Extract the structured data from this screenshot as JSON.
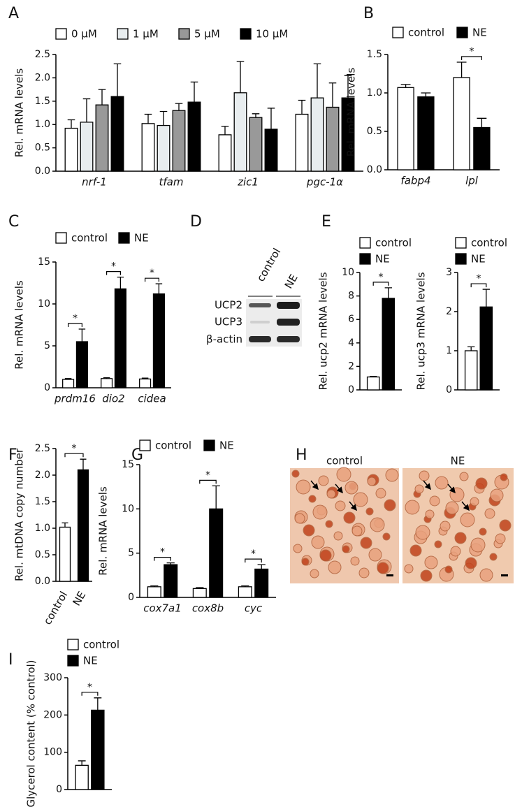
{
  "chart_data": [
    {
      "panel": "A",
      "type": "bar",
      "ylabel": "Rel. mRNA levels",
      "categories": [
        "nrf-1",
        "tfam",
        "zic1",
        "pgc-1α"
      ],
      "series": [
        {
          "name": "0 μM",
          "color": "#ffffff",
          "values": [
            0.92,
            1.02,
            0.78,
            1.22
          ],
          "errors": [
            0.18,
            0.2,
            0.18,
            0.3
          ]
        },
        {
          "name": "1 μM",
          "color": "#e8edef",
          "values": [
            1.05,
            0.98,
            1.68,
            1.57
          ],
          "errors": [
            0.5,
            0.3,
            0.67,
            0.73
          ]
        },
        {
          "name": "5 μM",
          "color": "#999999",
          "values": [
            1.42,
            1.3,
            1.15,
            1.37
          ],
          "errors": [
            0.33,
            0.15,
            0.08,
            0.52
          ]
        },
        {
          "name": "10 μM",
          "color": "#000000",
          "values": [
            1.6,
            1.48,
            0.9,
            1.57
          ],
          "errors": [
            0.7,
            0.43,
            0.45,
            0.48
          ]
        }
      ],
      "ylim": [
        0,
        2.5
      ],
      "yticks": [
        {
          "value": 0,
          "label": "0.0"
        },
        0.5,
        {
          "value": 1,
          "label": "1.0"
        },
        1.5,
        {
          "value": 2,
          "label": "2.0"
        },
        2.5
      ],
      "legend": "top"
    },
    {
      "panel": "B",
      "type": "bar",
      "ylabel": "Rel. mRNA levels",
      "categories": [
        "fabp4",
        "lpl"
      ],
      "series": [
        {
          "name": "control",
          "color": "#ffffff",
          "values": [
            1.07,
            1.2
          ],
          "errors": [
            0.04,
            0.2
          ]
        },
        {
          "name": "NE",
          "color": "#000000",
          "values": [
            0.95,
            0.55
          ],
          "errors": [
            0.05,
            0.12
          ]
        }
      ],
      "ylim": [
        0,
        1.5
      ],
      "yticks": [
        {
          "value": 0,
          "label": "0.0"
        },
        0.5,
        {
          "value": 1,
          "label": "1.0"
        },
        1.5
      ],
      "legend": "top",
      "annotations": [
        {
          "text": "*",
          "category": "lpl"
        }
      ]
    },
    {
      "panel": "C",
      "type": "bar",
      "ylabel": "Rel. mRNA levels",
      "categories": [
        "prdm16",
        "dio2",
        "cidea"
      ],
      "series": [
        {
          "name": "control",
          "color": "#ffffff",
          "values": [
            1.0,
            1.1,
            1.05
          ],
          "errors": [
            0.1,
            0.1,
            0.1
          ]
        },
        {
          "name": "NE",
          "color": "#000000",
          "values": [
            5.5,
            11.8,
            11.2
          ],
          "errors": [
            1.5,
            1.4,
            1.2
          ]
        }
      ],
      "ylim": [
        0,
        15
      ],
      "yticks": [
        0,
        5,
        10,
        15
      ],
      "legend": "top",
      "annotations": [
        {
          "text": "*",
          "category": "prdm16"
        },
        {
          "text": "*",
          "category": "dio2"
        },
        {
          "text": "*",
          "category": "cidea"
        }
      ]
    },
    {
      "panel": "E",
      "type": "bar",
      "ylabel": "Rel. ucp2 mRNA levels",
      "categories": [
        null
      ],
      "series": [
        {
          "name": "control",
          "color": "#ffffff",
          "values": [
            1.1
          ],
          "errors": [
            0.05
          ]
        },
        {
          "name": "NE",
          "color": "#000000",
          "values": [
            7.8
          ],
          "errors": [
            0.9
          ]
        }
      ],
      "ylim": [
        0,
        10
      ],
      "yticks": [
        0,
        2,
        4,
        6,
        8,
        10
      ],
      "legend": "top",
      "annotations": [
        {
          "text": "*",
          "category": null
        }
      ]
    },
    {
      "type": "bar",
      "ylabel": "Rel. ucp3 mRNA levels",
      "categories": [
        null
      ],
      "series": [
        {
          "name": "control",
          "color": "#ffffff",
          "values": [
            1.0
          ],
          "errors": [
            0.1
          ]
        },
        {
          "name": "NE",
          "color": "#000000",
          "values": [
            2.12
          ],
          "errors": [
            0.45
          ]
        }
      ],
      "ylim": [
        0,
        3
      ],
      "yticks": [
        0,
        1,
        2,
        3
      ],
      "legend": "top",
      "annotations": [
        {
          "text": "*",
          "category": null
        }
      ]
    },
    {
      "panel": "F",
      "type": "bar",
      "ylabel": "Rel. mtDNA copy number",
      "categories": [
        "control",
        "NE"
      ],
      "values": [
        1.02,
        2.1
      ],
      "errors": [
        0.08,
        0.2
      ],
      "colors": [
        "#ffffff",
        "#000000"
      ],
      "ylim": [
        0,
        2.5
      ],
      "yticks": [
        {
          "value": 0,
          "label": "0.0"
        },
        0.5,
        {
          "value": 1,
          "label": "1.0"
        },
        1.5,
        {
          "value": 2,
          "label": "2.0"
        },
        2.5
      ],
      "annotations": [
        {
          "text": "*",
          "category": null
        }
      ]
    },
    {
      "panel": "G",
      "type": "bar",
      "ylabel": "Rel. mRNA levels",
      "categories": [
        "cox7a1",
        "cox8b",
        "cyc"
      ],
      "series": [
        {
          "name": "control",
          "color": "#ffffff",
          "values": [
            1.2,
            1.0,
            1.2
          ],
          "errors": [
            0.1,
            0.1,
            0.1
          ]
        },
        {
          "name": "NE",
          "color": "#000000",
          "values": [
            3.7,
            10.0,
            3.2
          ],
          "errors": [
            0.2,
            2.6,
            0.5
          ]
        }
      ],
      "ylim": [
        0,
        15
      ],
      "yticks": [
        0,
        5,
        10,
        15
      ],
      "legend": "top",
      "annotations": [
        {
          "text": "*",
          "category": "cox7a1"
        },
        {
          "text": "*",
          "category": "cox8b"
        },
        {
          "text": "*",
          "category": "cyc"
        }
      ]
    },
    {
      "panel": "I",
      "type": "bar",
      "ylabel": "Glycerol content (% control)",
      "categories": [
        null
      ],
      "series": [
        {
          "name": "control",
          "color": "#ffffff",
          "values": [
            65
          ],
          "errors": [
            12
          ]
        },
        {
          "name": "NE",
          "color": "#000000",
          "values": [
            213
          ],
          "errors": [
            33
          ]
        }
      ],
      "ylim": [
        0,
        300
      ],
      "yticks": [
        0,
        100,
        200,
        300
      ],
      "legend": "top",
      "annotations": [
        {
          "text": "*",
          "category": null
        }
      ]
    }
  ],
  "blot": {
    "panel": "D",
    "lanes": [
      "control",
      "NE"
    ],
    "rows": [
      "UCP2",
      "UCP3",
      "β-actin"
    ]
  },
  "micrographs": {
    "panel": "H",
    "labels": [
      "control",
      "NE"
    ]
  }
}
